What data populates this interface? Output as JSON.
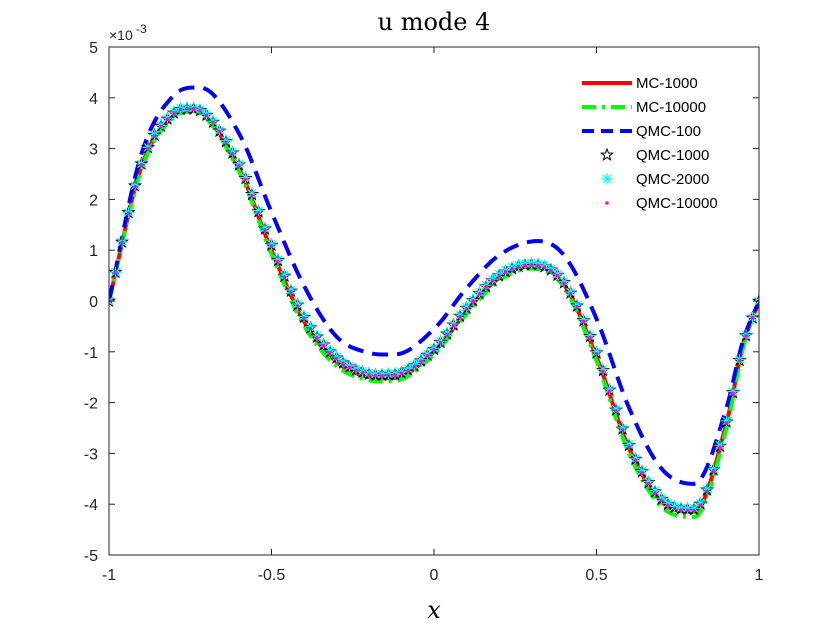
{
  "chart_data": {
    "type": "line",
    "title": "u mode 4",
    "xlabel": "x",
    "ylabel": "",
    "xlim": [
      -1,
      1
    ],
    "ylim": [
      -5,
      5
    ],
    "y_scale_label": "×10",
    "y_scale_exponent": "-3",
    "xticks": [
      -1,
      -0.5,
      0,
      0.5,
      1
    ],
    "xtick_labels": [
      "-1",
      "-0.5",
      "0",
      "0.5",
      "1"
    ],
    "yticks": [
      -5,
      -4,
      -3,
      -2,
      -1,
      0,
      1,
      2,
      3,
      4,
      5
    ],
    "ytick_labels": [
      "-5",
      "-4",
      "-3",
      "-2",
      "-1",
      "0",
      "1",
      "2",
      "3",
      "4",
      "5"
    ],
    "legend_position": "top-right",
    "series": [
      {
        "name": "MC-1000",
        "style": "solid",
        "color": "#ff0000",
        "x": [
          -1,
          -0.9,
          -0.8,
          -0.74,
          -0.6,
          -0.5,
          -0.4,
          -0.3,
          -0.2,
          -0.13,
          0,
          0.1,
          0.2,
          0.3,
          0.4,
          0.5,
          0.6,
          0.7,
          0.8,
          0.9,
          0.95,
          1
        ],
        "values": [
          0,
          2.65,
          3.65,
          3.75,
          2.6,
          1.0,
          -0.4,
          -1.2,
          -1.5,
          -1.52,
          -1.0,
          -0.2,
          0.45,
          0.68,
          0.32,
          -1.1,
          -2.9,
          -3.95,
          -4.15,
          -2.4,
          -0.9,
          0
        ]
      },
      {
        "name": "MC-10000",
        "style": "dashdot",
        "color": "#00ff00",
        "x": [
          -1,
          -0.9,
          -0.8,
          -0.74,
          -0.6,
          -0.5,
          -0.4,
          -0.3,
          -0.2,
          -0.13,
          0,
          0.1,
          0.2,
          0.3,
          0.4,
          0.5,
          0.6,
          0.7,
          0.8,
          0.9,
          0.95,
          1
        ],
        "values": [
          0,
          2.6,
          3.62,
          3.72,
          2.55,
          0.92,
          -0.48,
          -1.28,
          -1.56,
          -1.58,
          -1.05,
          -0.26,
          0.4,
          0.64,
          0.27,
          -1.18,
          -3.0,
          -4.05,
          -4.25,
          -2.5,
          -0.95,
          0
        ]
      },
      {
        "name": "QMC-100",
        "style": "dashed",
        "color": "#0000ff",
        "x": [
          -1,
          -0.9,
          -0.8,
          -0.72,
          -0.6,
          -0.5,
          -0.4,
          -0.3,
          -0.2,
          -0.12,
          0,
          0.1,
          0.2,
          0.32,
          0.4,
          0.5,
          0.6,
          0.7,
          0.8,
          0.9,
          0.95,
          1
        ],
        "values": [
          0,
          2.9,
          4.05,
          4.2,
          3.3,
          1.75,
          0.3,
          -0.7,
          -1.02,
          -1.05,
          -0.55,
          0.25,
          0.9,
          1.18,
          0.9,
          -0.35,
          -2.1,
          -3.3,
          -3.6,
          -2.1,
          -0.8,
          0
        ]
      },
      {
        "name": "QMC-1000",
        "style": "marker-star",
        "color": "#000000",
        "x": [
          -1,
          -0.9,
          -0.8,
          -0.74,
          -0.6,
          -0.5,
          -0.4,
          -0.3,
          -0.2,
          -0.13,
          0,
          0.1,
          0.2,
          0.3,
          0.4,
          0.5,
          0.6,
          0.7,
          0.8,
          0.9,
          0.95,
          1
        ],
        "values": [
          0,
          2.7,
          3.7,
          3.78,
          2.68,
          1.1,
          -0.32,
          -1.12,
          -1.44,
          -1.45,
          -0.95,
          -0.14,
          0.5,
          0.72,
          0.36,
          -1.02,
          -2.84,
          -3.9,
          -4.1,
          -2.38,
          -0.9,
          0
        ]
      },
      {
        "name": "QMC-2000",
        "style": "marker-asterisk",
        "color": "#00ffff",
        "x": [
          -1,
          -0.9,
          -0.8,
          -0.74,
          -0.6,
          -0.5,
          -0.4,
          -0.3,
          -0.2,
          -0.13,
          0,
          0.1,
          0.2,
          0.3,
          0.4,
          0.5,
          0.6,
          0.7,
          0.8,
          0.9,
          0.95,
          1
        ],
        "values": [
          0,
          2.7,
          3.72,
          3.8,
          2.7,
          1.12,
          -0.3,
          -1.1,
          -1.42,
          -1.43,
          -0.93,
          -0.12,
          0.53,
          0.75,
          0.38,
          -1.0,
          -2.82,
          -3.88,
          -4.08,
          -2.36,
          -0.88,
          0
        ]
      },
      {
        "name": "QMC-10000",
        "style": "marker-dot",
        "color": "#ff00ff",
        "x": [
          -1,
          -0.9,
          -0.8,
          -0.74,
          -0.6,
          -0.5,
          -0.4,
          -0.3,
          -0.2,
          -0.13,
          0,
          0.1,
          0.2,
          0.3,
          0.4,
          0.5,
          0.6,
          0.7,
          0.8,
          0.9,
          0.95,
          1
        ],
        "values": [
          0,
          2.68,
          3.7,
          3.78,
          2.66,
          1.08,
          -0.34,
          -1.13,
          -1.45,
          -1.46,
          -0.96,
          -0.15,
          0.5,
          0.71,
          0.35,
          -1.04,
          -2.86,
          -3.92,
          -4.12,
          -2.4,
          -0.9,
          0
        ]
      }
    ]
  }
}
